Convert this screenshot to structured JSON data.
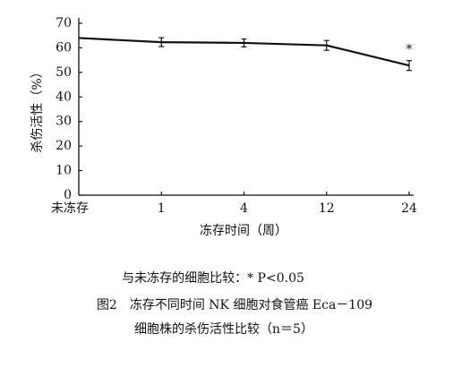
{
  "chart_data": {
    "type": "line",
    "ylabel": "杀伤活性（%）",
    "xlabel": "冻存时间（周）",
    "categories": [
      "未冻存",
      "1",
      "4",
      "12",
      "24"
    ],
    "values": [
      64,
      62.3,
      62,
      61,
      52.8
    ],
    "errors": [
      null,
      1.8,
      1.6,
      2,
      2
    ],
    "color": "#111111",
    "ylim": [
      0,
      70
    ],
    "yticks": [
      0,
      10,
      20,
      30,
      40,
      50,
      60,
      70
    ],
    "annotation": "*",
    "note": "与未冻存的细胞比较：* P<0.05",
    "caption": [
      "图2　冻存不同时间 NK 细胞对食管癌 Eca－109",
      "细胞株的杀伤活性比较（n＝5）"
    ]
  }
}
